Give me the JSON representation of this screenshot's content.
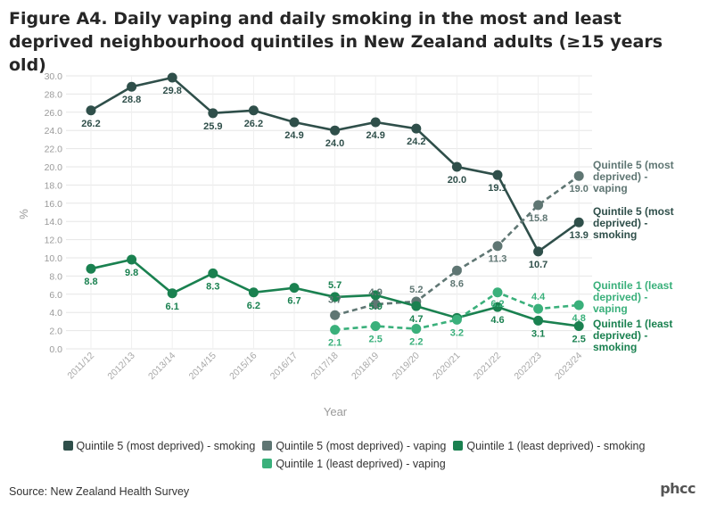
{
  "chart_data": {
    "type": "line",
    "title": "Figure A4. Daily vaping and daily smoking in the most and least deprived neighbourhood quintiles in New Zealand adults (≥15 years old)",
    "xlabel": "Year",
    "ylabel": "%",
    "ylim": [
      0,
      30
    ],
    "yticks": [
      "0.0",
      "2.0",
      "4.0",
      "6.0",
      "8.0",
      "10.0",
      "12.0",
      "14.0",
      "16.0",
      "18.0",
      "20.0",
      "22.0",
      "24.0",
      "26.0",
      "28.0",
      "30.0"
    ],
    "categories": [
      "2011/12",
      "2012/13",
      "2013/14",
      "2014/15",
      "2015/16",
      "2016/17",
      "2017/18",
      "2018/19",
      "2019/20",
      "2020/21",
      "2021/22",
      "2022/23",
      "2023/24"
    ],
    "grid": true,
    "legend_position": "bottom",
    "series": [
      {
        "key": "q5s",
        "name": "Quintile 5 (most deprived) - smoking",
        "end_label": [
          "Quintile 5 (most",
          "deprived) -",
          "smoking"
        ],
        "color": "#2f4f4a",
        "dashed": false,
        "values": [
          26.2,
          28.8,
          29.8,
          25.9,
          26.2,
          24.9,
          24.0,
          24.9,
          24.2,
          20.0,
          19.1,
          10.7,
          13.9
        ]
      },
      {
        "key": "q5v",
        "name": "Quintile 5 (most deprived) - vaping",
        "end_label": [
          "Quintile 5 (most",
          "deprived) -",
          "vaping"
        ],
        "color": "#5f7673",
        "dashed": true,
        "values": [
          null,
          null,
          null,
          null,
          null,
          null,
          3.7,
          4.9,
          5.2,
          8.6,
          11.3,
          15.8,
          19.0
        ]
      },
      {
        "key": "q1s",
        "name": "Quintile 1 (least deprived) - smoking",
        "end_label": [
          "Quintile 1 (least",
          "deprived) -",
          "smoking"
        ],
        "color": "#1a8150",
        "dashed": false,
        "values": [
          8.8,
          9.8,
          6.1,
          8.3,
          6.2,
          6.7,
          5.7,
          5.9,
          4.7,
          3.4,
          4.6,
          3.1,
          2.5
        ]
      },
      {
        "key": "q1v",
        "name": "Quintile 1 (least deprived) - vaping",
        "end_label": [
          "Quintile 1 (least",
          "deprived) -",
          "vaping"
        ],
        "color": "#3ab07b",
        "dashed": true,
        "values": [
          null,
          null,
          null,
          null,
          null,
          null,
          2.1,
          2.5,
          2.2,
          3.2,
          6.2,
          4.4,
          4.8
        ]
      }
    ],
    "data_labels": {
      "q5s": [
        "26.2",
        "28.8",
        "29.8",
        "25.9",
        "26.2",
        "24.9",
        "24.0",
        "24.9",
        "24.2",
        "20.0",
        "19.1",
        "10.7",
        "13.9"
      ],
      "q5v": [
        null,
        null,
        null,
        null,
        null,
        null,
        "3.7",
        "4.9",
        "5.2",
        "8.6",
        "11.3",
        "15.8",
        "19.0"
      ],
      "q1s": [
        "8.8",
        "9.8",
        "6.1",
        "8.3",
        "6.2",
        "6.7",
        "5.7",
        "5.9",
        "4.7",
        "3.4",
        "4.6",
        "3.1",
        "2.5"
      ],
      "q1v": [
        null,
        null,
        null,
        null,
        null,
        null,
        "2.1",
        "2.5",
        "2.2",
        "3.2",
        "6.2",
        "4.4",
        "4.8"
      ]
    }
  },
  "source": "Source: New Zealand Health Survey",
  "logo_text": "phcc"
}
